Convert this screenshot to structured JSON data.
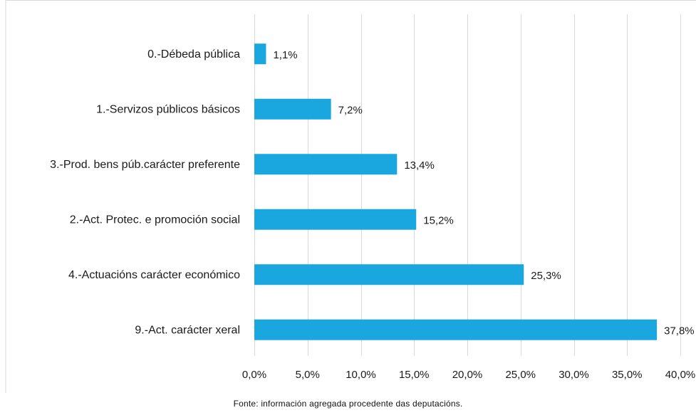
{
  "chart_data": {
    "type": "bar",
    "orientation": "horizontal",
    "categories": [
      "0.-Débeda pública",
      "1.-Servizos públicos básicos",
      "3.-Prod. bens púb.carácter preferente",
      "2.-Act. Protec. e promoción social",
      "4.-Actuacións carácter económico",
      "9.-Act. carácter xeral"
    ],
    "values": [
      1.1,
      7.2,
      13.4,
      15.2,
      25.3,
      37.8
    ],
    "value_labels": [
      "1,1%",
      "7,2%",
      "13,4%",
      "15,2%",
      "25,3%",
      "37,8%"
    ],
    "xlim": [
      0,
      40
    ],
    "xticks": [
      0,
      5,
      10,
      15,
      20,
      25,
      30,
      35,
      40
    ],
    "xtick_labels": [
      "0,0%",
      "5,0%",
      "10,0%",
      "15,0%",
      "20,0%",
      "25,0%",
      "30,0%",
      "35,0%",
      "40,0%"
    ],
    "grid": true,
    "bar_color": "#1aa7e0",
    "grid_color": "#d9d9d9",
    "source_note": "Fonte: información agregada procedente das deputacións."
  }
}
